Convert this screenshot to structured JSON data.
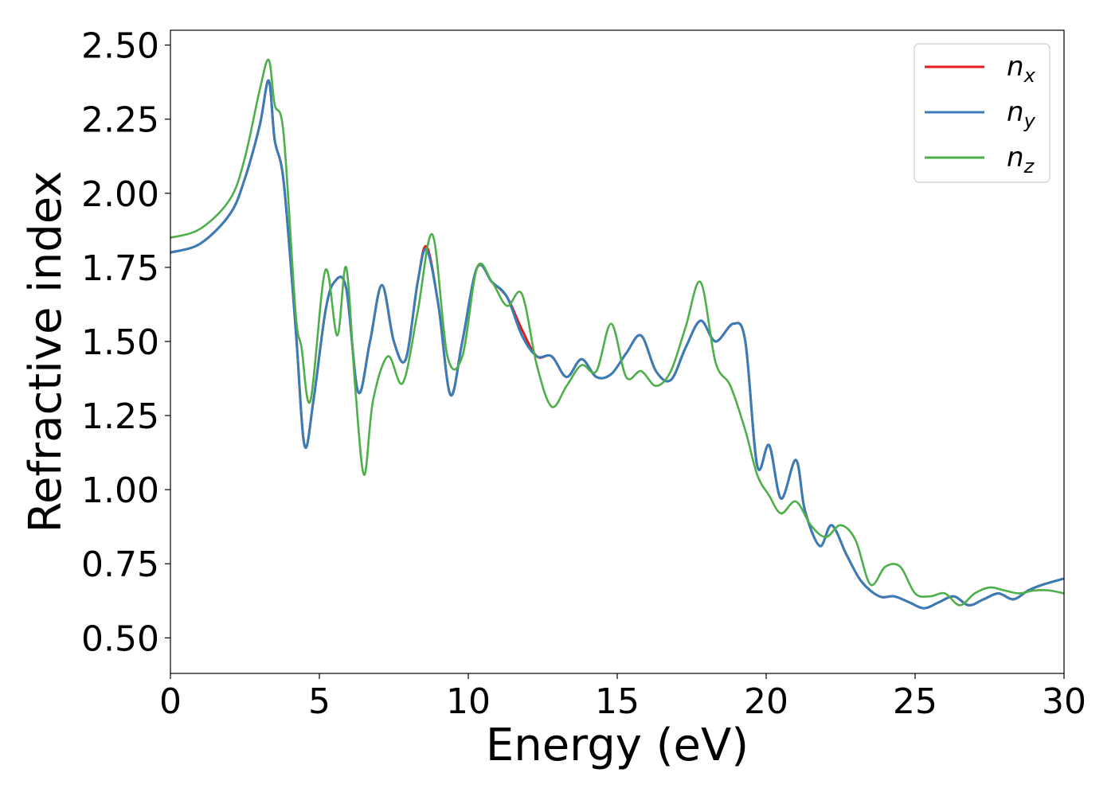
{
  "chart_data": {
    "type": "line",
    "xlabel": "Energy (eV)",
    "ylabel": "Refractive index",
    "xlim": [
      0,
      30
    ],
    "ylim": [
      0.38,
      2.55
    ],
    "xticks": [
      0,
      5,
      10,
      15,
      20,
      25,
      30
    ],
    "xtick_labels": [
      "0",
      "5",
      "10",
      "15",
      "20",
      "25",
      "30"
    ],
    "yticks": [
      0.5,
      0.75,
      1.0,
      1.25,
      1.5,
      1.75,
      2.0,
      2.25,
      2.5
    ],
    "ytick_labels": [
      "0.50",
      "0.75",
      "1.00",
      "1.25",
      "1.50",
      "1.75",
      "2.00",
      "2.25",
      "2.50"
    ],
    "grid": false,
    "legend_position": "top-right",
    "series": [
      {
        "name": "n_x",
        "label_base": "n",
        "label_sub": "x",
        "color": "#e41a1c",
        "x": [
          0,
          1,
          2,
          2.5,
          3,
          3.3,
          3.5,
          3.8,
          4.2,
          4.5,
          4.8,
          5.2,
          5.5,
          5.9,
          6.3,
          6.7,
          7.1,
          7.5,
          7.9,
          8.3,
          8.6,
          9.0,
          9.4,
          9.8,
          10.3,
          10.8,
          11.3,
          11.8,
          12.3,
          12.8,
          13.3,
          13.8,
          14.3,
          14.8,
          15.3,
          15.8,
          16.3,
          16.8,
          17.3,
          17.8,
          18.3,
          18.9,
          19.3,
          19.7,
          20.1,
          20.5,
          21.0,
          21.3,
          21.8,
          22.2,
          22.7,
          23.2,
          23.8,
          24.3,
          24.8,
          25.3,
          25.8,
          26.3,
          26.8,
          27.3,
          27.8,
          28.3,
          28.8,
          29.3,
          30
        ],
        "y": [
          1.8,
          1.83,
          1.93,
          2.05,
          2.23,
          2.38,
          2.18,
          2.04,
          1.55,
          1.15,
          1.3,
          1.6,
          1.7,
          1.68,
          1.33,
          1.5,
          1.69,
          1.5,
          1.44,
          1.7,
          1.82,
          1.62,
          1.32,
          1.5,
          1.75,
          1.7,
          1.65,
          1.54,
          1.45,
          1.45,
          1.38,
          1.44,
          1.38,
          1.39,
          1.46,
          1.52,
          1.4,
          1.37,
          1.48,
          1.57,
          1.5,
          1.56,
          1.5,
          1.08,
          1.15,
          0.97,
          1.1,
          0.93,
          0.81,
          0.88,
          0.78,
          0.69,
          0.64,
          0.64,
          0.62,
          0.6,
          0.62,
          0.64,
          0.61,
          0.63,
          0.65,
          0.63,
          0.66,
          0.68,
          0.7
        ]
      },
      {
        "name": "n_y",
        "label_base": "n",
        "label_sub": "y",
        "color": "#377eb8",
        "x": [
          0,
          1,
          2,
          2.5,
          3,
          3.3,
          3.5,
          3.8,
          4.2,
          4.5,
          4.8,
          5.2,
          5.5,
          5.9,
          6.3,
          6.7,
          7.1,
          7.5,
          7.9,
          8.3,
          8.6,
          9.0,
          9.4,
          9.8,
          10.3,
          10.8,
          11.3,
          11.8,
          12.3,
          12.8,
          13.3,
          13.8,
          14.3,
          14.8,
          15.3,
          15.8,
          16.3,
          16.8,
          17.3,
          17.8,
          18.3,
          18.9,
          19.3,
          19.7,
          20.1,
          20.5,
          21.0,
          21.3,
          21.8,
          22.2,
          22.7,
          23.2,
          23.8,
          24.3,
          24.8,
          25.3,
          25.8,
          26.3,
          26.8,
          27.3,
          27.8,
          28.3,
          28.8,
          29.3,
          30
        ],
        "y": [
          1.8,
          1.83,
          1.93,
          2.05,
          2.23,
          2.38,
          2.18,
          2.04,
          1.55,
          1.15,
          1.3,
          1.6,
          1.7,
          1.68,
          1.33,
          1.5,
          1.69,
          1.5,
          1.44,
          1.7,
          1.81,
          1.62,
          1.32,
          1.5,
          1.75,
          1.7,
          1.65,
          1.52,
          1.45,
          1.45,
          1.38,
          1.44,
          1.38,
          1.39,
          1.46,
          1.52,
          1.4,
          1.37,
          1.48,
          1.57,
          1.5,
          1.56,
          1.5,
          1.08,
          1.15,
          0.97,
          1.1,
          0.93,
          0.81,
          0.88,
          0.78,
          0.69,
          0.64,
          0.64,
          0.62,
          0.6,
          0.62,
          0.64,
          0.61,
          0.63,
          0.65,
          0.63,
          0.66,
          0.68,
          0.7
        ]
      },
      {
        "name": "n_z",
        "label_base": "n",
        "label_sub": "z",
        "color": "#4daf4a",
        "x": [
          0,
          1,
          2,
          2.5,
          3,
          3.3,
          3.5,
          3.8,
          4.2,
          4.4,
          4.7,
          5.2,
          5.6,
          5.9,
          6.2,
          6.5,
          6.8,
          7.3,
          7.8,
          8.3,
          8.8,
          9.3,
          9.8,
          10.3,
          10.8,
          11.3,
          11.8,
          12.3,
          12.8,
          13.3,
          13.8,
          14.3,
          14.8,
          15.3,
          15.8,
          16.3,
          16.8,
          17.3,
          17.8,
          18.3,
          18.8,
          19.3,
          19.7,
          20.1,
          20.5,
          21.0,
          21.5,
          22.0,
          22.5,
          23.0,
          23.5,
          24.0,
          24.5,
          25.0,
          25.5,
          26.0,
          26.5,
          27.0,
          27.5,
          28.0,
          28.5,
          29.0,
          29.5,
          30
        ],
        "y": [
          1.85,
          1.88,
          1.98,
          2.12,
          2.35,
          2.45,
          2.3,
          2.2,
          1.6,
          1.48,
          1.3,
          1.74,
          1.52,
          1.75,
          1.35,
          1.05,
          1.3,
          1.45,
          1.36,
          1.6,
          1.86,
          1.45,
          1.45,
          1.75,
          1.7,
          1.62,
          1.66,
          1.42,
          1.28,
          1.35,
          1.42,
          1.4,
          1.56,
          1.38,
          1.4,
          1.35,
          1.4,
          1.55,
          1.7,
          1.43,
          1.35,
          1.2,
          1.05,
          0.98,
          0.92,
          0.96,
          0.88,
          0.84,
          0.88,
          0.83,
          0.68,
          0.74,
          0.74,
          0.65,
          0.64,
          0.65,
          0.61,
          0.65,
          0.67,
          0.66,
          0.65,
          0.66,
          0.66,
          0.65
        ]
      }
    ]
  }
}
